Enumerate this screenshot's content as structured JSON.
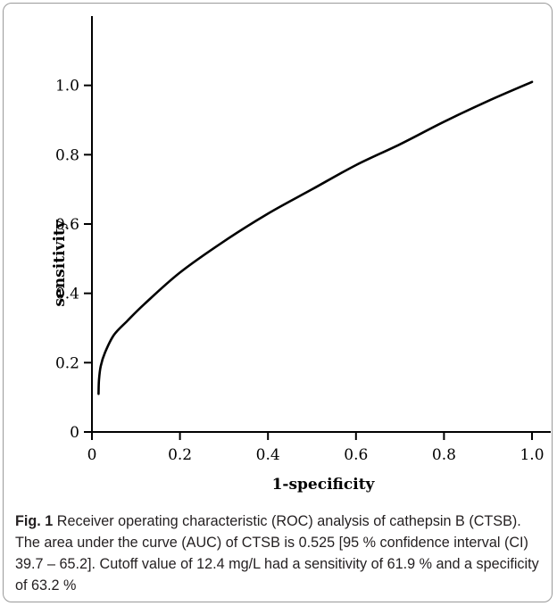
{
  "caption": {
    "label": "Fig. 1",
    "text": "Receiver operating characteristic (ROC) analysis of cathepsin B (CTSB). The area under the curve (AUC) of CTSB is 0.525 [95 % confidence interval (CI) 39.7 – 65.2]. Cutoff value of 12.4 mg/L had a sensitivity of 61.9 % and a specificity of 63.2 %"
  },
  "chart_data": {
    "type": "line",
    "title": "",
    "xlabel": "1-specificity",
    "ylabel": "sensitivity",
    "xlim": [
      0,
      1.0
    ],
    "ylim": [
      0,
      1.2
    ],
    "x_ticks": [
      "0",
      "0.2",
      "0.4",
      "0.6",
      "0.8",
      "1.0"
    ],
    "y_ticks": [
      "0",
      "0.2",
      "0.4",
      "0.6",
      "0.8",
      "1.0"
    ],
    "grid": false,
    "series": [
      {
        "name": "",
        "color": "#000000",
        "x": [
          0.015,
          0.016,
          0.02,
          0.03,
          0.05,
          0.08,
          0.12,
          0.2,
          0.3,
          0.4,
          0.5,
          0.6,
          0.7,
          0.8,
          0.9,
          1.0
        ],
        "y": [
          0.11,
          0.15,
          0.19,
          0.23,
          0.28,
          0.32,
          0.37,
          0.46,
          0.55,
          0.63,
          0.7,
          0.77,
          0.83,
          0.895,
          0.955,
          1.01
        ]
      }
    ]
  }
}
